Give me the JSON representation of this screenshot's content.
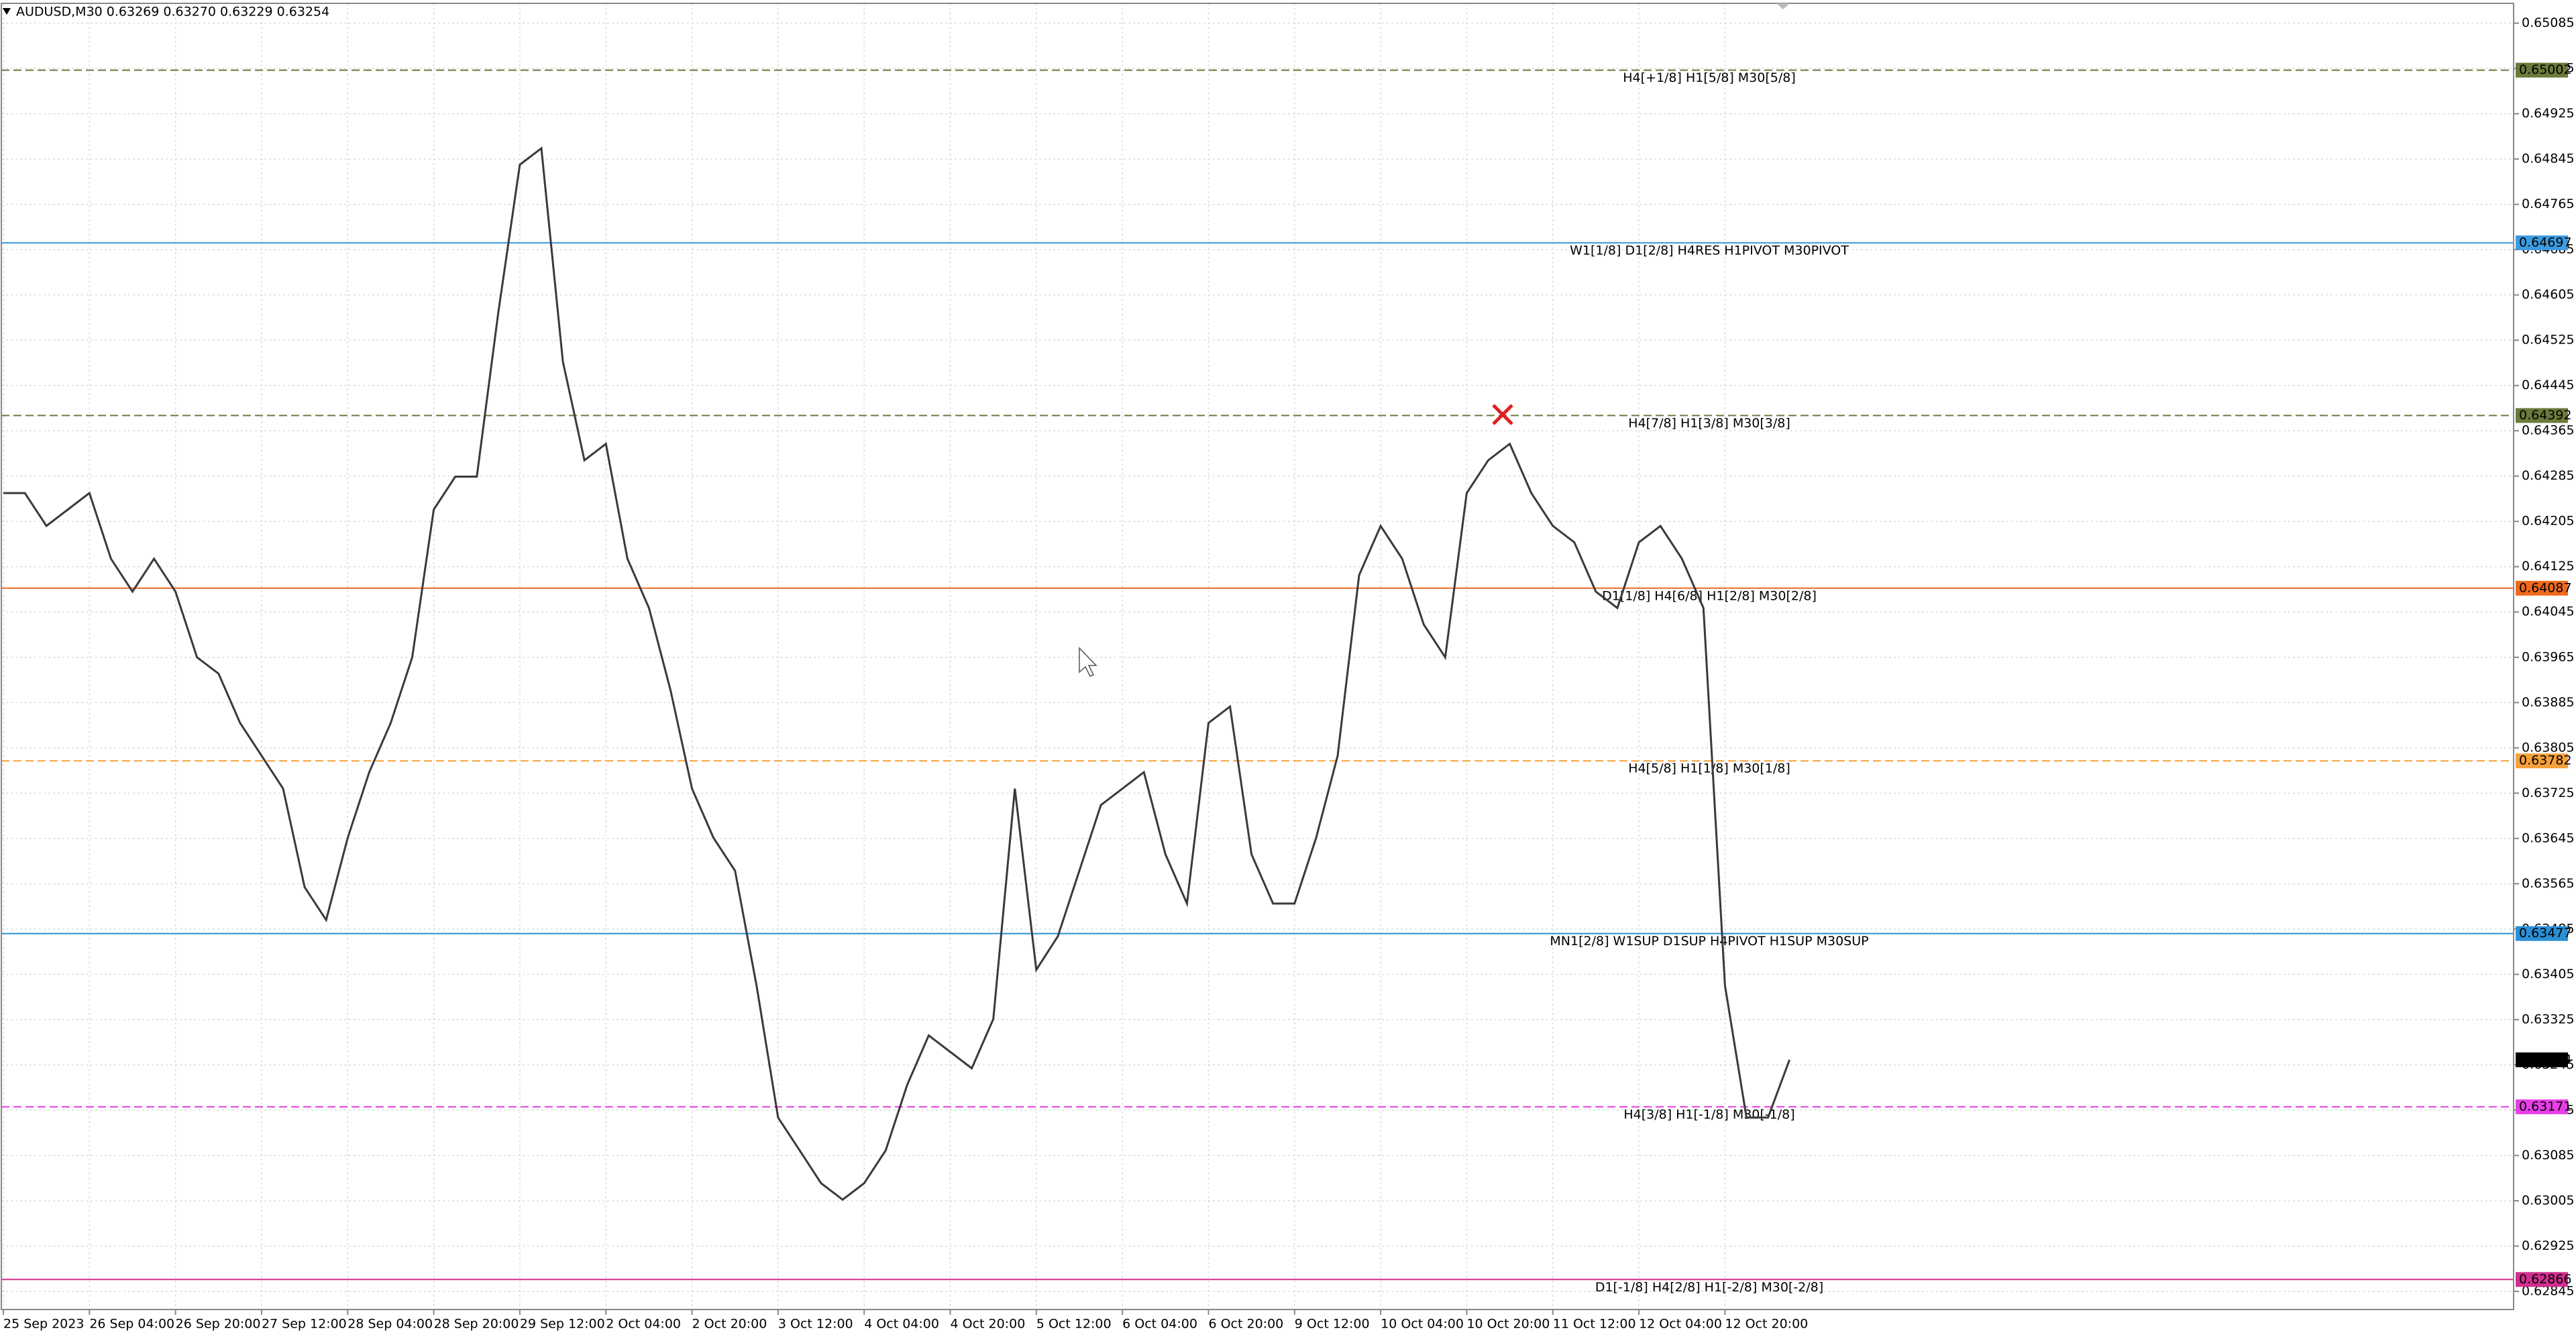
{
  "chart_data": {
    "type": "line",
    "title": "AUDUSD,M30  0.63269 0.63270 0.63229 0.63254",
    "color": "#3a3a3a",
    "grid": true,
    "ylim": [
      0.62813,
      0.6512
    ],
    "yticks": [
      0.65085,
      0.65005,
      0.64925,
      0.64845,
      0.64765,
      0.64685,
      0.64605,
      0.64525,
      0.64445,
      0.64365,
      0.64285,
      0.64205,
      0.64125,
      0.64045,
      0.63965,
      0.63885,
      0.63805,
      0.63725,
      0.63645,
      0.63565,
      0.63485,
      0.63405,
      0.63325,
      0.63245,
      0.63165,
      0.63085,
      0.63005,
      0.62925,
      0.62845
    ],
    "categories": [
      "25 Sep 2023",
      null,
      null,
      null,
      "26 Sep 04:00",
      null,
      null,
      null,
      "26 Sep 20:00",
      null,
      null,
      null,
      "27 Sep 12:00",
      null,
      null,
      null,
      "28 Sep 04:00",
      null,
      null,
      null,
      "28 Sep 20:00",
      null,
      null,
      null,
      "29 Sep 12:00",
      null,
      null,
      null,
      "2 Oct 04:00",
      null,
      null,
      null,
      "2 Oct 20:00",
      null,
      null,
      null,
      "3 Oct 12:00",
      null,
      null,
      null,
      "4 Oct 04:00",
      null,
      null,
      null,
      "4 Oct 20:00",
      null,
      null,
      null,
      "5 Oct 12:00",
      null,
      null,
      null,
      "6 Oct 04:00",
      null,
      null,
      null,
      "6 Oct 20:00",
      null,
      null,
      null,
      "9 Oct 12:00",
      null,
      null,
      null,
      "10 Oct 04:00",
      null,
      null,
      null,
      "10 Oct 20:00",
      null,
      null,
      null,
      "11 Oct 12:00",
      null,
      null,
      null,
      "12 Oct 04:00",
      null,
      null,
      null,
      "12 Oct 20:00",
      null,
      null,
      null
    ],
    "values": [
      0.64255,
      0.64255,
      0.64197,
      0.64226,
      0.64255,
      0.64139,
      0.64081,
      0.64139,
      0.64081,
      0.63965,
      0.63936,
      0.63849,
      0.63791,
      0.63733,
      0.63559,
      0.63501,
      0.63646,
      0.63762,
      0.63849,
      0.63965,
      0.64226,
      0.64284,
      0.64284,
      0.64574,
      0.64835,
      0.64864,
      0.64487,
      0.64313,
      0.64342,
      0.64139,
      0.64052,
      0.63907,
      0.63733,
      0.63646,
      0.63588,
      0.63385,
      0.63152,
      0.63094,
      0.63036,
      0.63007,
      0.63036,
      0.63094,
      0.6321,
      0.63297,
      0.63268,
      0.63239,
      0.63326,
      0.63733,
      0.63413,
      0.63472,
      0.63588,
      0.63704,
      0.63733,
      0.63762,
      0.63617,
      0.6353,
      0.63849,
      0.63878,
      0.63617,
      0.6353,
      0.6353,
      0.63646,
      0.63791,
      0.6411,
      0.64197,
      0.64139,
      0.64023,
      0.63965,
      0.64255,
      0.64313,
      0.64342,
      0.64255,
      0.64197,
      0.64168,
      0.64081,
      0.64052,
      0.64168,
      0.64197,
      0.64139,
      0.64052,
      0.63385,
      0.63152,
      0.63152,
      0.63254
    ],
    "levels": [
      {
        "value": 0.65002,
        "label": "H4[+1/8] H1[5/8] M30[5/8]",
        "color": "#6b7a3a",
        "dashed": true
      },
      {
        "value": 0.64697,
        "label": "W1[1/8] D1[2/8] H4RES H1PIVOT M30PIVOT",
        "color": "#3d9be0",
        "dashed": false
      },
      {
        "value": 0.64392,
        "label": "H4[7/8] H1[3/8] M30[3/8]",
        "color": "#6b7a3a",
        "dashed": true
      },
      {
        "value": 0.64087,
        "label": "D1[1/8] H4[6/8] H1[2/8] M30[2/8]",
        "color": "#f06a1e",
        "dashed": false
      },
      {
        "value": 0.63782,
        "label": "H4[5/8] H1[1/8] M30[1/8]",
        "color": "#f5a03a",
        "dashed": true
      },
      {
        "value": 0.63477,
        "label": "MN1[2/8] W1SUP D1SUP H4PIVOT H1SUP M30SUP",
        "color": "#2a8fd6",
        "dashed": false
      },
      {
        "value": 0.63171,
        "label": "H4[3/8] H1[-1/8] M30[-1/8]",
        "color": "#e83ee8",
        "dashed": true
      },
      {
        "value": 0.62866,
        "label": "D1[-1/8] H4[2/8] H1[-2/8] M30[-2/8]",
        "color": "#d02f8f",
        "dashed": false
      }
    ]
  }
}
